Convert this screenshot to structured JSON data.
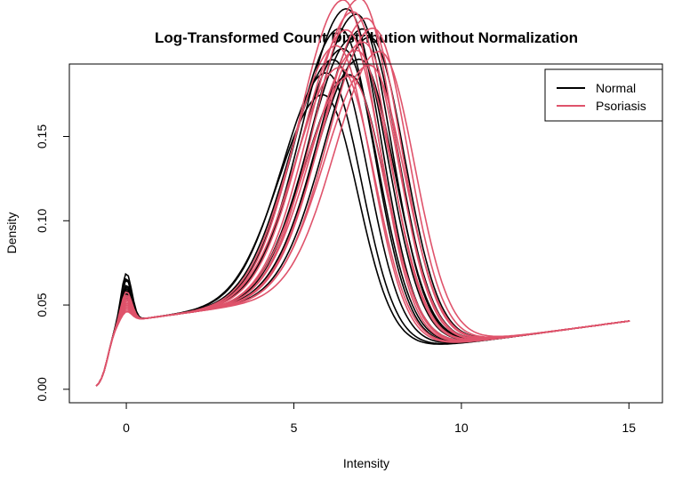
{
  "chart_data": {
    "type": "line",
    "title": "Log-Transformed Count Distribution without Normalization",
    "xlabel": "Intensity",
    "ylabel": "Density",
    "xlim": [
      -1.7,
      16.0
    ],
    "ylim": [
      -0.008,
      0.193
    ],
    "x_ticks": [
      0,
      5,
      10,
      15
    ],
    "x_tick_labels": [
      "0",
      "5",
      "10",
      "15"
    ],
    "y_ticks": [
      0.0,
      0.05,
      0.1,
      0.15
    ],
    "y_tick_labels": [
      "0.00",
      "0.05",
      "0.10",
      "0.15"
    ],
    "grid": false,
    "legend": {
      "placement": "top-right",
      "entries": [
        {
          "label": "Normal",
          "color": "#000000"
        },
        {
          "label": "Psoriasis",
          "color": "#DF536B"
        }
      ]
    },
    "groups": [
      {
        "name": "Normal",
        "color": "#000000",
        "series": [
          {
            "peak_x": 6.6,
            "peak_y": 0.181,
            "spike_y": 0.069
          },
          {
            "peak_x": 6.9,
            "peak_y": 0.176,
            "spike_y": 0.066
          },
          {
            "peak_x": 6.4,
            "peak_y": 0.17,
            "spike_y": 0.065
          },
          {
            "peak_x": 7.1,
            "peak_y": 0.166,
            "spike_y": 0.062
          },
          {
            "peak_x": 6.8,
            "peak_y": 0.162,
            "spike_y": 0.06
          },
          {
            "peak_x": 6.5,
            "peak_y": 0.157,
            "spike_y": 0.059
          },
          {
            "peak_x": 7.3,
            "peak_y": 0.16,
            "spike_y": 0.061
          },
          {
            "peak_x": 6.2,
            "peak_y": 0.152,
            "spike_y": 0.057
          },
          {
            "peak_x": 7.0,
            "peak_y": 0.148,
            "spike_y": 0.056
          },
          {
            "peak_x": 6.0,
            "peak_y": 0.145,
            "spike_y": 0.055
          },
          {
            "peak_x": 6.7,
            "peak_y": 0.14,
            "spike_y": 0.054
          },
          {
            "peak_x": 5.9,
            "peak_y": 0.132,
            "spike_y": 0.058
          }
        ]
      },
      {
        "name": "Psoriasis",
        "color": "#DF536B",
        "series": [
          {
            "peak_x": 6.5,
            "peak_y": 0.187,
            "spike_y": 0.058
          },
          {
            "peak_x": 7.0,
            "peak_y": 0.185,
            "spike_y": 0.056
          },
          {
            "peak_x": 6.8,
            "peak_y": 0.178,
            "spike_y": 0.055
          },
          {
            "peak_x": 7.2,
            "peak_y": 0.172,
            "spike_y": 0.054
          },
          {
            "peak_x": 6.6,
            "peak_y": 0.168,
            "spike_y": 0.053
          },
          {
            "peak_x": 7.4,
            "peak_y": 0.165,
            "spike_y": 0.052
          },
          {
            "peak_x": 6.3,
            "peak_y": 0.16,
            "spike_y": 0.051
          },
          {
            "peak_x": 7.1,
            "peak_y": 0.158,
            "spike_y": 0.05
          },
          {
            "peak_x": 6.9,
            "peak_y": 0.154,
            "spike_y": 0.049
          },
          {
            "peak_x": 7.6,
            "peak_y": 0.15,
            "spike_y": 0.048
          },
          {
            "peak_x": 6.4,
            "peak_y": 0.146,
            "spike_y": 0.05
          },
          {
            "peak_x": 7.3,
            "peak_y": 0.143,
            "spike_y": 0.047
          },
          {
            "peak_x": 6.7,
            "peak_y": 0.139,
            "spike_y": 0.046
          }
        ]
      }
    ]
  }
}
